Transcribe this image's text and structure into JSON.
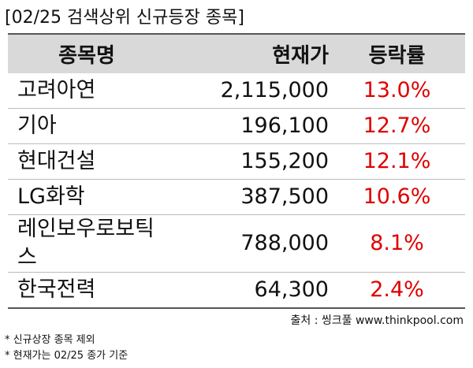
{
  "header": {
    "title": "[02/25 검색상위 신규등장 종목]"
  },
  "table": {
    "columns": [
      "종목명",
      "현재가",
      "등락률"
    ],
    "rows": [
      [
        "고려아연",
        "2,115,000",
        "13.0%"
      ],
      [
        "기아",
        "196,100",
        "12.7%"
      ],
      [
        "현대건설",
        "155,200",
        "12.1%"
      ],
      [
        "LG화학",
        "387,500",
        "10.6%"
      ],
      [
        "레인보우로보틱스",
        "788,000",
        "8.1%"
      ],
      [
        "한국전력",
        "64,300",
        "2.4%"
      ]
    ]
  },
  "source": "출처 : 씽크풀 www.thinkpool.com",
  "notes": [
    "* 신규상장 종목 제외",
    "* 현재가는 02/25 종가 기준"
  ]
}
